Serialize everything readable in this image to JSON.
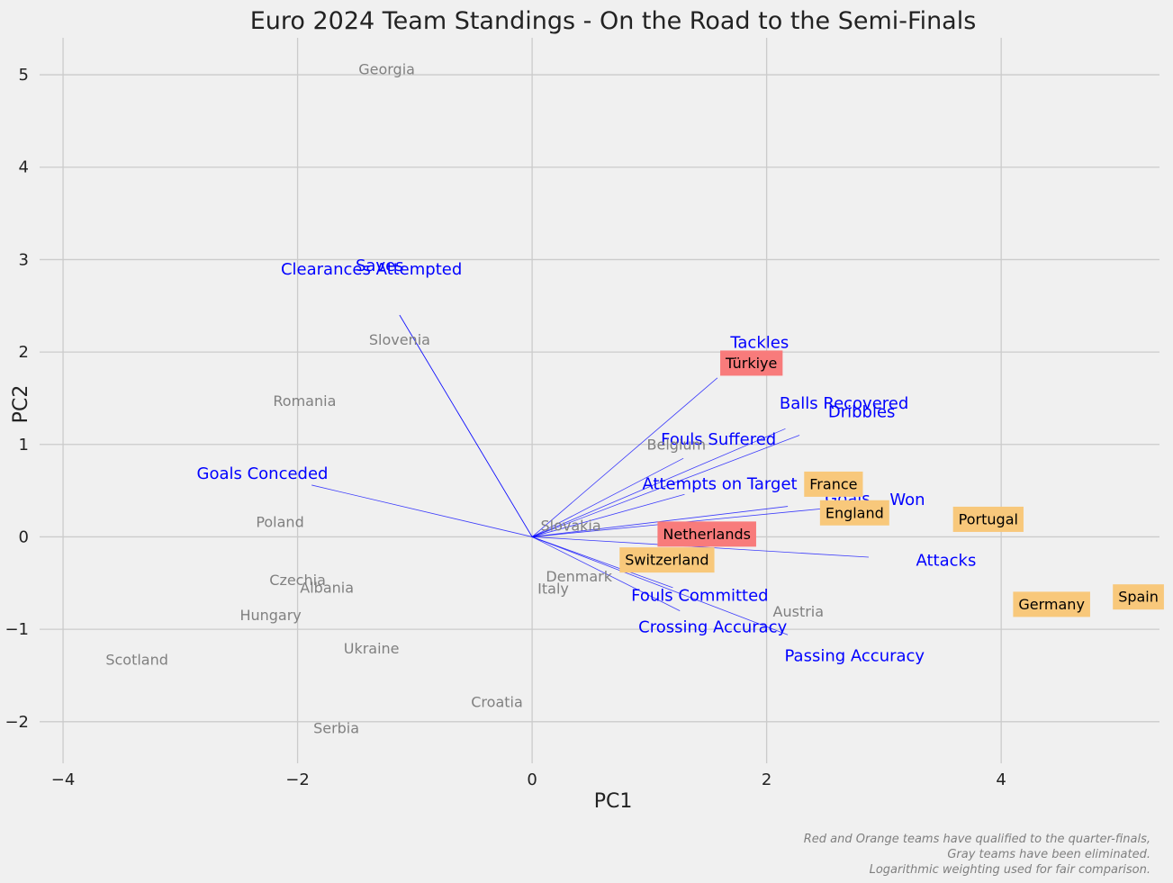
{
  "chart_data": {
    "type": "scatter",
    "title": "Euro 2024 Team Standings - On the Road to the Semi-Finals",
    "xlabel": "PC1",
    "ylabel": "PC2",
    "xlim": [
      -4.2,
      5.35
    ],
    "ylim": [
      -2.45,
      5.4
    ],
    "xticks": [
      -4,
      -2,
      0,
      2,
      4
    ],
    "yticks": [
      -2,
      -1,
      0,
      1,
      2,
      3,
      4,
      5
    ],
    "grid": true,
    "footnote": [
      "Red and Orange teams have qualified to the quarter-finals,",
      "Gray teams have been eliminated.",
      "Logarithmic weighting used for fair comparison."
    ],
    "colors": {
      "background": "#f0f0f0",
      "grid": "#cbcbcb",
      "eliminated": "#808080",
      "quarterfinal_red": "#f87b7b",
      "quarterfinal_orange": "#f8c87b",
      "loading": "#0000ff"
    },
    "teams": [
      {
        "name": "Georgia",
        "x": -1.24,
        "y": 5.06,
        "status": "eliminated"
      },
      {
        "name": "Slovenia",
        "x": -1.13,
        "y": 2.13,
        "status": "eliminated"
      },
      {
        "name": "Romania",
        "x": -1.94,
        "y": 1.47,
        "status": "eliminated"
      },
      {
        "name": "Belgium",
        "x": 1.23,
        "y": 1.0,
        "status": "eliminated"
      },
      {
        "name": "Poland",
        "x": -2.15,
        "y": 0.16,
        "status": "eliminated"
      },
      {
        "name": "Slovakia",
        "x": 0.33,
        "y": 0.12,
        "status": "eliminated"
      },
      {
        "name": "Czechia",
        "x": -2.0,
        "y": -0.47,
        "status": "eliminated"
      },
      {
        "name": "Albania",
        "x": -1.75,
        "y": -0.55,
        "status": "eliminated"
      },
      {
        "name": "Denmark",
        "x": 0.4,
        "y": -0.43,
        "status": "eliminated"
      },
      {
        "name": "Italy",
        "x": 0.18,
        "y": -0.56,
        "status": "eliminated"
      },
      {
        "name": "Hungary",
        "x": -2.23,
        "y": -0.85,
        "status": "eliminated"
      },
      {
        "name": "Austria",
        "x": 2.27,
        "y": -0.81,
        "status": "eliminated"
      },
      {
        "name": "Ukraine",
        "x": -1.37,
        "y": -1.21,
        "status": "eliminated"
      },
      {
        "name": "Scotland",
        "x": -3.37,
        "y": -1.33,
        "status": "eliminated"
      },
      {
        "name": "Croatia",
        "x": -0.3,
        "y": -1.79,
        "status": "eliminated"
      },
      {
        "name": "Serbia",
        "x": -1.67,
        "y": -2.07,
        "status": "eliminated"
      },
      {
        "name": "Türkiye",
        "x": 1.87,
        "y": 1.88,
        "status": "quarterfinal_red"
      },
      {
        "name": "Netherlands",
        "x": 1.49,
        "y": 0.03,
        "status": "quarterfinal_red"
      },
      {
        "name": "France",
        "x": 2.57,
        "y": 0.57,
        "status": "quarterfinal_orange"
      },
      {
        "name": "England",
        "x": 2.75,
        "y": 0.26,
        "status": "quarterfinal_orange"
      },
      {
        "name": "Portugal",
        "x": 3.89,
        "y": 0.19,
        "status": "quarterfinal_orange"
      },
      {
        "name": "Switzerland",
        "x": 1.15,
        "y": -0.25,
        "status": "quarterfinal_orange"
      },
      {
        "name": "Germany",
        "x": 4.43,
        "y": -0.73,
        "status": "quarterfinal_orange"
      },
      {
        "name": "Spain",
        "x": 5.17,
        "y": -0.65,
        "status": "quarterfinal_orange"
      }
    ],
    "loadings": [
      {
        "name": "Saves",
        "x": -1.13,
        "y": 2.4,
        "lx": -1.3,
        "ly": 2.93
      },
      {
        "name": "Clearances Attempted",
        "x": -1.13,
        "y": 2.4,
        "lx": -1.37,
        "ly": 2.89
      },
      {
        "name": "Tackles",
        "x": 1.58,
        "y": 1.72,
        "lx": 1.94,
        "ly": 2.1
      },
      {
        "name": "Balls Recovered",
        "x": 2.16,
        "y": 1.17,
        "lx": 2.66,
        "ly": 1.44
      },
      {
        "name": "Dribbles",
        "x": 2.28,
        "y": 1.1,
        "lx": 2.81,
        "ly": 1.35
      },
      {
        "name": "Fouls Suffered",
        "x": 1.29,
        "y": 0.85,
        "lx": 1.59,
        "ly": 1.05
      },
      {
        "name": "Goals Conceded",
        "x": -1.88,
        "y": 0.56,
        "lx": -2.3,
        "ly": 0.68
      },
      {
        "name": "Attempts on Target",
        "x": 1.3,
        "y": 0.46,
        "lx": 1.6,
        "ly": 0.57
      },
      {
        "name": "Goals",
        "x": 2.18,
        "y": 0.33,
        "lx": 2.69,
        "ly": 0.41
      },
      {
        "name": "Won",
        "x": 2.6,
        "y": 0.32,
        "lx": 3.2,
        "ly": 0.4
      },
      {
        "name": "Attacks",
        "x": 2.87,
        "y": -0.22,
        "lx": 3.53,
        "ly": -0.26
      },
      {
        "name": "Fouls Committed",
        "x": 1.2,
        "y": -0.55,
        "lx": 1.43,
        "ly": -0.64
      },
      {
        "name": "Crossing Accuracy",
        "x": 1.26,
        "y": -0.8,
        "lx": 1.54,
        "ly": -0.98
      },
      {
        "name": "Passing Accuracy",
        "x": 2.18,
        "y": -1.06,
        "lx": 2.75,
        "ly": -1.29
      }
    ]
  }
}
